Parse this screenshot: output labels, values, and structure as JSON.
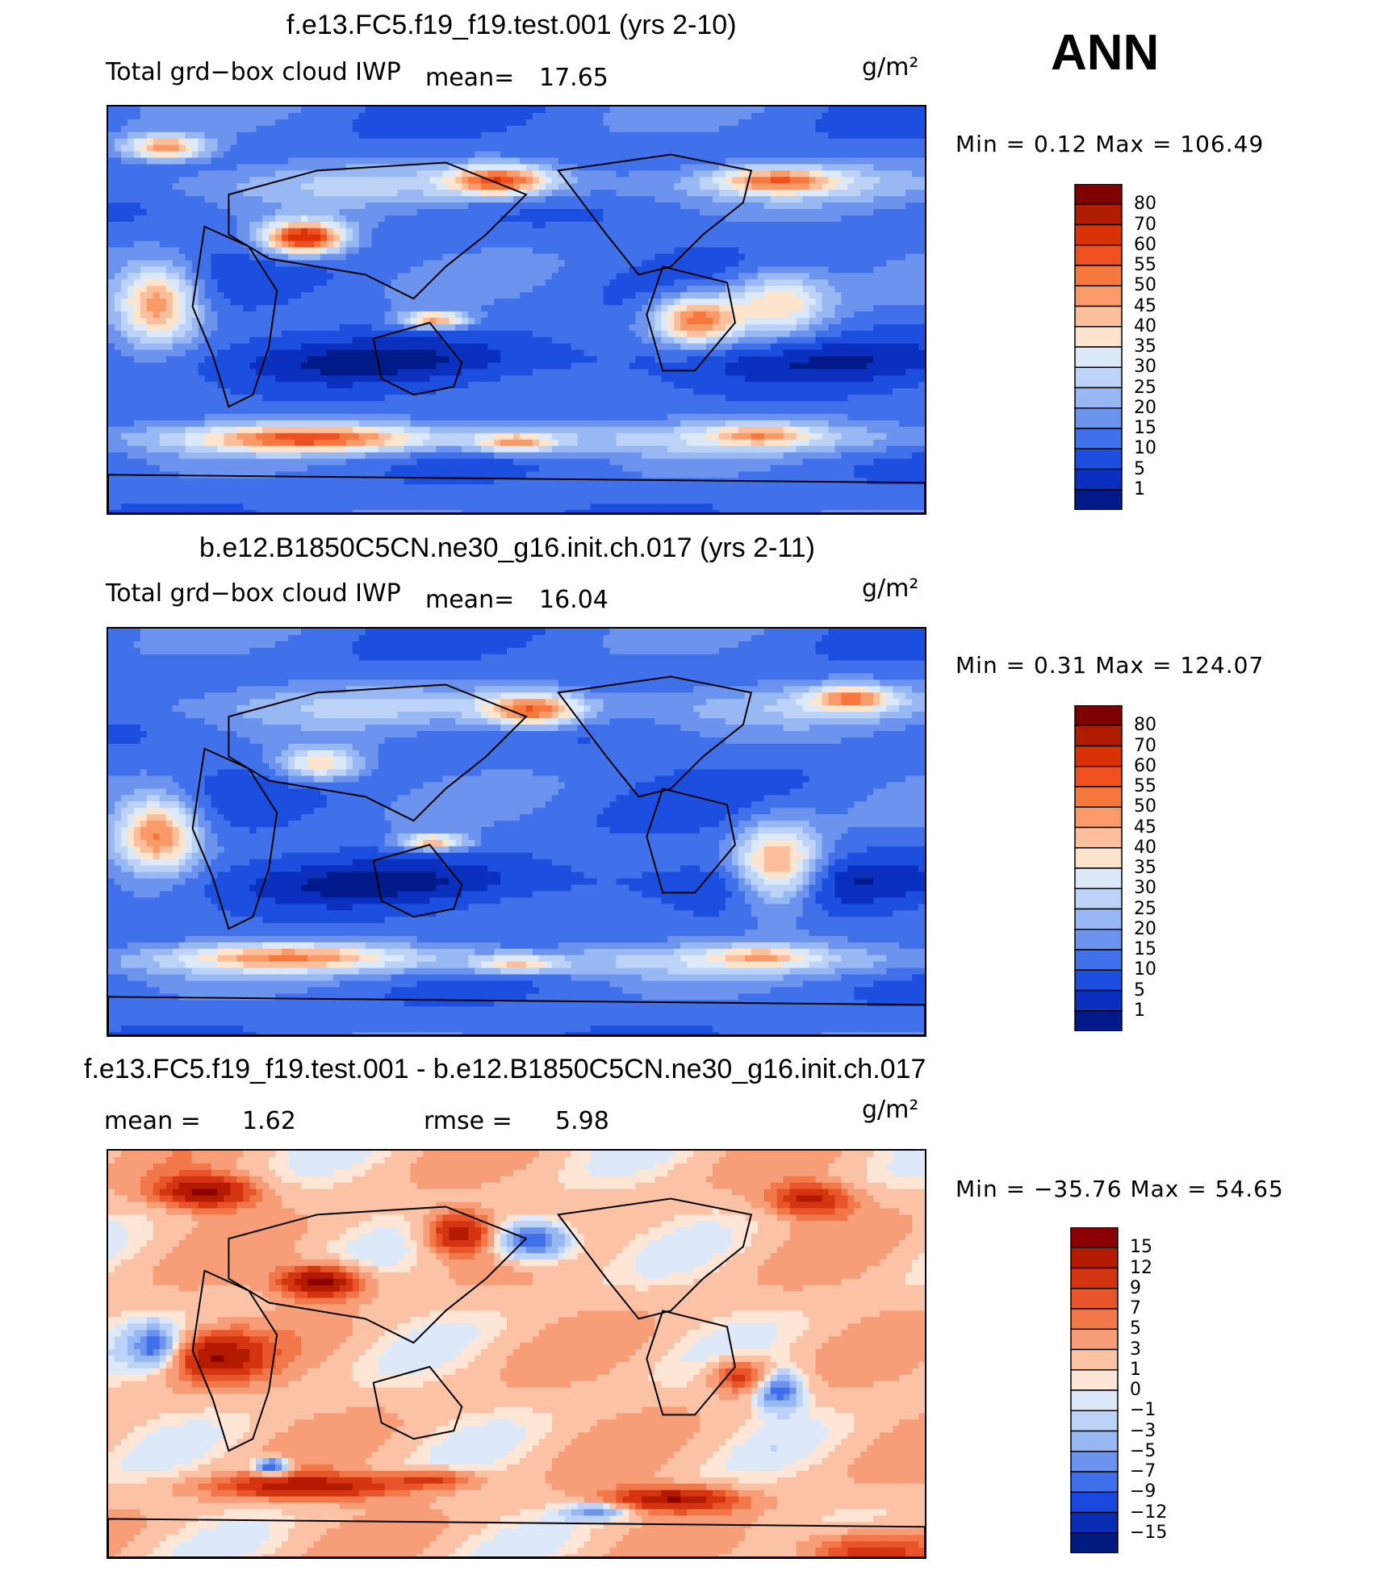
{
  "season": "ANN",
  "panels": [
    {
      "title": "f.e13.FC5.f19_f19.test.001 (yrs 2-10)",
      "variable": "Total grd−box cloud IWP",
      "mean_label": "mean=",
      "mean_value": "17.65",
      "units": "g/m²",
      "minmax": "Min =    0.12  Max  =  106.49"
    },
    {
      "title": "b.e12.B1850C5CN.ne30_g16.init.ch.017 (yrs 2-11)",
      "variable": "Total grd−box cloud IWP",
      "mean_label": "mean=",
      "mean_value": "16.04",
      "units": "g/m²",
      "minmax": "Min =    0.31  Max  =  124.07"
    },
    {
      "title": "f.e13.FC5.f19_f19.test.001 - b.e12.B1850C5CN.ne30_g16.init.ch.017",
      "mean_label": "mean  =",
      "mean_value": "1.62",
      "rmse_label": "rmse  =",
      "rmse_value": "5.98",
      "units": "g/m²",
      "minmax": "Min  = −35.76  Max  =   54.65"
    }
  ],
  "chart_data": [
    {
      "type": "heatmap",
      "title": "f.e13.FC5.f19_f19.test.001 (yrs 2-10)",
      "field": "Total grd-box cloud IWP",
      "units": "g/m2",
      "mean": 17.65,
      "min": 0.12,
      "max": 106.49,
      "colorbar_levels": [
        "80",
        "70",
        "60",
        "55",
        "50",
        "45",
        "40",
        "35",
        "30",
        "25",
        "20",
        "15",
        "10",
        "5",
        "1"
      ],
      "colorbar_colors": [
        "#7f0000",
        "#b01c00",
        "#d83206",
        "#f05020",
        "#f7783c",
        "#f99a68",
        "#fbbf9c",
        "#fde4cc",
        "#dbe9f8",
        "#bcd3f7",
        "#97b8f3",
        "#6c94ee",
        "#4070ea",
        "#1c4fe0",
        "#0b30c0",
        "#001a8a"
      ]
    },
    {
      "type": "heatmap",
      "title": "b.e12.B1850C5CN.ne30_g16.init.ch.017 (yrs 2-11)",
      "field": "Total grd-box cloud IWP",
      "units": "g/m2",
      "mean": 16.04,
      "min": 0.31,
      "max": 124.07,
      "colorbar_levels": [
        "80",
        "70",
        "60",
        "55",
        "50",
        "45",
        "40",
        "35",
        "30",
        "25",
        "20",
        "15",
        "10",
        "5",
        "1"
      ],
      "colorbar_colors": [
        "#7f0000",
        "#b01c00",
        "#d83206",
        "#f05020",
        "#f7783c",
        "#f99a68",
        "#fbbf9c",
        "#fde4cc",
        "#dbe9f8",
        "#bcd3f7",
        "#97b8f3",
        "#6c94ee",
        "#4070ea",
        "#1c4fe0",
        "#0b30c0",
        "#001a8a"
      ]
    },
    {
      "type": "heatmap",
      "title": "f.e13.FC5.f19_f19.test.001 - b.e12.B1850C5CN.ne30_g16.init.ch.017",
      "field": "difference",
      "units": "g/m2",
      "mean": 1.62,
      "rmse": 5.98,
      "min": -35.76,
      "max": 54.65,
      "colorbar_levels": [
        "15",
        "12",
        "9",
        "7",
        "5",
        "3",
        "1",
        "0",
        "−1",
        "−3",
        "−5",
        "−7",
        "−9",
        "−12",
        "−15"
      ],
      "colorbar_colors": [
        "#8b0000",
        "#b41a00",
        "#d53410",
        "#e8552a",
        "#f2784a",
        "#f79e78",
        "#fbc2a6",
        "#fde6d6",
        "#dde9f9",
        "#bcd3f7",
        "#97b8f3",
        "#6c94ee",
        "#3f6feb",
        "#1a48de",
        "#0a2cb4",
        "#001a80"
      ]
    }
  ]
}
